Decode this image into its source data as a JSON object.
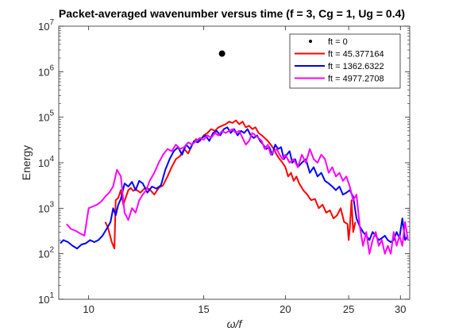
{
  "chart_data": {
    "type": "line",
    "title": "Packet-averaged wavenumber versus time (f = 3, Cg = 1, Ug = 0.4)",
    "xlabel": "ω/f",
    "ylabel": "Energy",
    "xscale": "log",
    "yscale": "log",
    "xlim": [
      9,
      31
    ],
    "ylim": [
      10,
      10000000
    ],
    "xticks": [
      10,
      15,
      20,
      25,
      30
    ],
    "xticklabels": [
      "10",
      "15",
      "20",
      "25",
      "30"
    ],
    "yticks": [
      10,
      100,
      1000,
      10000,
      100000,
      1000000,
      10000000
    ],
    "yticklabels": [
      [
        "10",
        "1"
      ],
      [
        "10",
        "2"
      ],
      [
        "10",
        "3"
      ],
      [
        "10",
        "4"
      ],
      [
        "10",
        "5"
      ],
      [
        "10",
        "6"
      ],
      [
        "10",
        "7"
      ]
    ],
    "grid": false,
    "legend": {
      "position": "top-right"
    },
    "series": [
      {
        "name": "ft = 0",
        "color": "#000000",
        "kind": "scatter",
        "x": [
          16.0
        ],
        "y": [
          2500000
        ]
      },
      {
        "name": "ft = 45.377164",
        "color": "#ff0000",
        "kind": "line",
        "x": [
          10.6,
          10.7,
          10.85,
          10.95,
          11.0,
          11.1,
          11.2,
          11.3,
          11.5,
          11.6,
          11.7,
          11.8,
          12.0,
          12.2,
          12.4,
          12.6,
          12.8,
          13.0,
          13.2,
          13.4,
          13.6,
          13.8,
          14.0,
          14.2,
          14.4,
          14.6,
          14.8,
          15.0,
          15.2,
          15.4,
          15.6,
          15.8,
          16.0,
          16.2,
          16.4,
          16.6,
          16.8,
          17.0,
          17.2,
          17.4,
          17.6,
          17.8,
          18.0,
          18.2,
          18.4,
          18.6,
          18.8,
          19.0,
          19.2,
          19.4,
          19.6,
          19.8,
          20.0,
          20.2,
          20.4,
          20.6,
          20.8,
          21.0,
          21.3,
          21.6,
          21.9,
          22.2,
          22.5,
          22.8,
          23.1,
          23.4,
          23.7,
          24.0,
          24.3,
          24.6,
          24.9,
          25.0,
          25.1,
          25.25,
          25.4,
          25.6
        ],
        "y": [
          500,
          380,
          180,
          130,
          1500,
          1700,
          2500,
          1200,
          2500,
          2800,
          2400,
          2600,
          2200,
          2800,
          2600,
          2000,
          2800,
          3200,
          5000,
          8000,
          12000,
          14000,
          20000,
          16000,
          25000,
          33000,
          30000,
          40000,
          45000,
          55000,
          50000,
          60000,
          65000,
          70000,
          80000,
          75000,
          85000,
          70000,
          80000,
          60000,
          65000,
          55000,
          60000,
          45000,
          40000,
          35000,
          30000,
          25000,
          20000,
          15000,
          12000,
          10000,
          8000,
          5000,
          6000,
          4000,
          5000,
          3500,
          2500,
          2000,
          1500,
          1600,
          1000,
          1200,
          800,
          900,
          600,
          700,
          1000,
          500,
          450,
          200,
          350,
          1500,
          300,
          500
        ]
      },
      {
        "name": "ft = 1362.6322",
        "color": "#0000ff",
        "kind": "line",
        "x": [
          9.05,
          9.15,
          9.3,
          9.45,
          9.6,
          9.75,
          9.9,
          10.05,
          10.2,
          10.35,
          10.5,
          10.65,
          10.8,
          10.9,
          11.0,
          11.1,
          11.2,
          11.35,
          11.5,
          11.65,
          11.8,
          11.95,
          12.1,
          12.3,
          12.5,
          12.7,
          12.9,
          13.1,
          13.3,
          13.5,
          13.7,
          13.9,
          14.1,
          14.3,
          14.5,
          14.7,
          14.9,
          15.1,
          15.3,
          15.5,
          15.7,
          15.9,
          16.1,
          16.3,
          16.5,
          16.7,
          16.9,
          17.1,
          17.3,
          17.5,
          17.7,
          17.9,
          18.1,
          18.3,
          18.5,
          18.7,
          18.9,
          19.1,
          19.3,
          19.5,
          19.7,
          19.9,
          20.1,
          20.3,
          20.5,
          20.7,
          20.9,
          21.2,
          21.5,
          21.8,
          22.1,
          22.4,
          22.7,
          23.0,
          23.3,
          23.6,
          23.9,
          24.2,
          24.5,
          24.8,
          25.1,
          25.4,
          25.7,
          26.0,
          26.3,
          26.6,
          26.9,
          27.2,
          27.5,
          27.8,
          28.1,
          28.4,
          28.7,
          29.0,
          29.3,
          29.6,
          29.9,
          30.2,
          30.5,
          30.8
        ],
        "y": [
          170,
          200,
          180,
          150,
          130,
          160,
          170,
          200,
          180,
          200,
          250,
          350,
          500,
          1000,
          700,
          1200,
          1600,
          3500,
          3000,
          3800,
          2500,
          4000,
          3500,
          2200,
          3000,
          2700,
          3200,
          7000,
          12000,
          18000,
          22000,
          15000,
          25000,
          20000,
          30000,
          28000,
          35000,
          40000,
          30000,
          45000,
          50000,
          40000,
          55000,
          60000,
          45000,
          55000,
          40000,
          50000,
          45000,
          55000,
          40000,
          35000,
          40000,
          30000,
          25000,
          20000,
          22000,
          15000,
          25000,
          20000,
          22000,
          12000,
          15000,
          18000,
          10000,
          12000,
          8000,
          10000,
          12000,
          6000,
          8000,
          5000,
          6000,
          4000,
          3500,
          3000,
          2500,
          3000,
          2000,
          2200,
          2500,
          1800,
          600,
          400,
          300,
          250,
          200,
          300,
          250,
          200,
          220,
          250,
          200,
          180,
          200,
          300,
          220,
          600,
          200,
          250
        ]
      },
      {
        "name": "ft = 4977.2708",
        "color": "#ff00ff",
        "kind": "line",
        "x": [
          9.25,
          9.4,
          9.55,
          9.7,
          9.85,
          10.0,
          10.15,
          10.3,
          10.45,
          10.6,
          10.75,
          10.9,
          11.05,
          11.2,
          11.35,
          11.5,
          11.65,
          11.8,
          11.95,
          12.1,
          12.25,
          12.4,
          12.6,
          12.8,
          13.0,
          13.2,
          13.4,
          13.6,
          13.8,
          14.0,
          14.2,
          14.4,
          14.6,
          14.8,
          15.0,
          15.2,
          15.4,
          15.6,
          15.8,
          16.0,
          16.2,
          16.4,
          16.6,
          16.8,
          17.0,
          17.2,
          17.4,
          17.6,
          17.8,
          18.0,
          18.2,
          18.4,
          18.6,
          18.8,
          19.0,
          19.2,
          19.4,
          19.6,
          19.8,
          20.0,
          20.3,
          20.6,
          20.9,
          21.2,
          21.5,
          21.8,
          22.1,
          22.4,
          22.7,
          23.0,
          23.3,
          23.6,
          23.9,
          24.2,
          24.5,
          24.8,
          25.1,
          25.4,
          25.7,
          26.0,
          26.3,
          26.6,
          26.9,
          27.2,
          27.5,
          27.8,
          28.1,
          28.4,
          28.7,
          29.0,
          29.3,
          29.6,
          29.9,
          30.2,
          30.5,
          30.8
        ],
        "y": [
          450,
          350,
          320,
          280,
          250,
          1000,
          1100,
          1200,
          1400,
          1800,
          2200,
          3000,
          7000,
          5000,
          800,
          550,
          1000,
          800,
          1500,
          2000,
          2500,
          4000,
          6000,
          10000,
          15000,
          20000,
          18000,
          25000,
          20000,
          22000,
          28000,
          25000,
          30000,
          35000,
          32000,
          40000,
          35000,
          45000,
          40000,
          50000,
          45000,
          50000,
          55000,
          45000,
          50000,
          35000,
          25000,
          30000,
          45000,
          40000,
          35000,
          30000,
          20000,
          25000,
          15000,
          18000,
          20000,
          15000,
          12000,
          15000,
          10000,
          12000,
          8000,
          15000,
          10000,
          20000,
          12000,
          10000,
          15000,
          12000,
          6000,
          8000,
          5000,
          6000,
          4000,
          5000,
          3000,
          1500,
          2000,
          400,
          150,
          300,
          100,
          200,
          300,
          150,
          200,
          100,
          150,
          100,
          300,
          150,
          250,
          150,
          500,
          200
        ]
      }
    ]
  }
}
